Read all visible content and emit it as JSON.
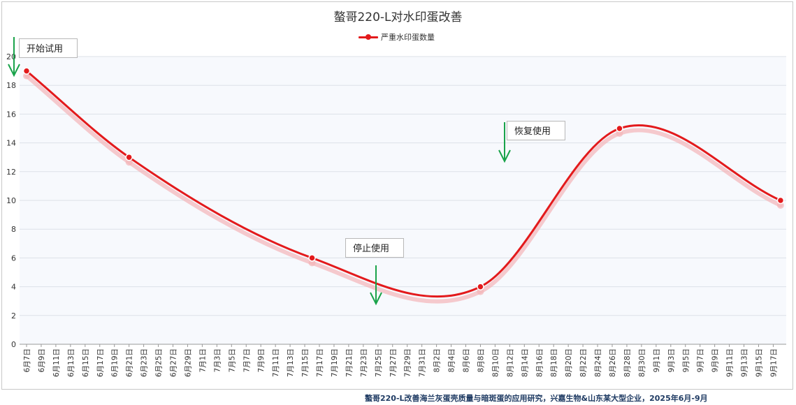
{
  "title": "螯哥220-L对水印蛋改善",
  "footer": "螯哥220-L改善海兰灰蛋壳质量与暗斑蛋的应用研究，兴嘉生物&山东某大型企业，2025年6月-9月",
  "colors": {
    "series": "#e31a1c",
    "arrow": "#1aa34a",
    "grid": "#dde1e8",
    "plot_bg": "#f7f9fd"
  },
  "annotations": [
    {
      "label": "开始试用",
      "at": "6月7日"
    },
    {
      "label": "停止使用",
      "at": "7月25日"
    },
    {
      "label": "恢复使用",
      "at": "8月12日"
    }
  ],
  "chart_data": {
    "type": "line",
    "title": "螯哥220-L对水印蛋改善",
    "xlabel": "",
    "ylabel": "",
    "ylim": [
      0,
      20
    ],
    "yticks": [
      0,
      2,
      4,
      6,
      8,
      10,
      12,
      14,
      16,
      18,
      20
    ],
    "grid": true,
    "legend_position": "top-center",
    "x_tick_labels": [
      "6月7日",
      "6月9日",
      "6月11日",
      "6月13日",
      "6月15日",
      "6月17日",
      "6月19日",
      "6月21日",
      "6月23日",
      "6月25日",
      "6月27日",
      "6月29日",
      "7月1日",
      "7月3日",
      "7月5日",
      "7月7日",
      "7月9日",
      "7月11日",
      "7月13日",
      "7月15日",
      "7月17日",
      "7月19日",
      "7月21日",
      "7月23日",
      "7月25日",
      "7月27日",
      "7月29日",
      "7月31日",
      "8月2日",
      "8月4日",
      "8月6日",
      "8月8日",
      "8月10日",
      "8月12日",
      "8月14日",
      "8月16日",
      "8月18日",
      "8月20日",
      "8月22日",
      "8月24日",
      "8月26日",
      "8月28日",
      "8月30日",
      "9月1日",
      "9月3日",
      "9月5日",
      "9月7日",
      "9月9日",
      "9月11日",
      "9月13日",
      "9月15日",
      "9月17日"
    ],
    "series": [
      {
        "name": "严重水印蛋数量",
        "points": [
          {
            "x": "6月7日",
            "y": 19
          },
          {
            "x": "6月21日",
            "y": 13
          },
          {
            "x": "7月16日",
            "y": 6
          },
          {
            "x": "8月8日",
            "y": 4
          },
          {
            "x": "8月27日",
            "y": 15
          },
          {
            "x": "9月18日",
            "y": 10
          }
        ]
      }
    ]
  }
}
